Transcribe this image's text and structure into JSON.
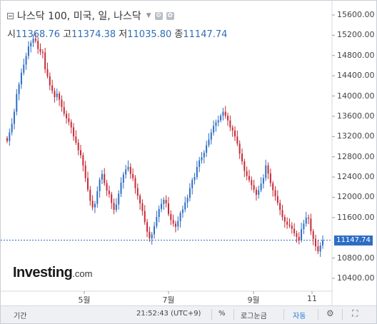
{
  "header": {
    "title": "나스닥 100, 미국, 일, 나스닥",
    "dropdown_icon": "caret-down-icon",
    "icons": [
      "settings-gear-icon",
      "gear-icon"
    ]
  },
  "ohlc": {
    "open_label": "시",
    "open": "11368.76",
    "high_label": "고",
    "high": "11374.38",
    "low_label": "저",
    "low": "11035.80",
    "close_label": "종",
    "close": "11147.74"
  },
  "logo": {
    "main": "Investing",
    "suffix": ".com"
  },
  "y_axis": {
    "labels": [
      "15600.00",
      "15200.00",
      "14800.00",
      "14400.00",
      "14000.00",
      "13600.00",
      "13200.00",
      "12800.00",
      "12400.00",
      "12000.00",
      "11600.00",
      "10800.00",
      "10400.00"
    ],
    "current_price": "11147.74"
  },
  "x_axis": {
    "labels": [
      "5월",
      "7월",
      "9월",
      "11"
    ]
  },
  "bottom_bar": {
    "period": "기간",
    "time": "21:52:43 (UTC+9)",
    "percent": "%",
    "log_scale": "로그눈금",
    "auto": "자동",
    "settings_icon": "gear-icon",
    "fullscreen_icon": "fullscreen-icon"
  },
  "colors": {
    "up": "#2d6ec5",
    "down": "#c62a36",
    "accent": "#2d6ec5"
  },
  "chart_data": {
    "type": "candlestick",
    "x_labels": [
      "5월",
      "7월",
      "9월",
      "11"
    ],
    "y_ticks": [
      15600,
      15200,
      14800,
      14400,
      14000,
      13600,
      13200,
      12800,
      12400,
      12000,
      11600,
      10800,
      10400
    ],
    "ylim": [
      10200,
      15800
    ],
    "last_price": 11147.74,
    "grid": false,
    "closes": [
      13110,
      13280,
      13450,
      13690,
      14040,
      14230,
      14460,
      14620,
      14790,
      14980,
      15050,
      15130,
      15090,
      14930,
      14870,
      14860,
      14530,
      14390,
      14210,
      14100,
      13980,
      14050,
      13930,
      13780,
      13650,
      13560,
      13490,
      13380,
      13200,
      13080,
      12930,
      12830,
      12630,
      12380,
      12150,
      11930,
      11800,
      11870,
      12120,
      12350,
      12460,
      12280,
      12130,
      12060,
      11890,
      11750,
      11860,
      12070,
      12290,
      12450,
      12550,
      12600,
      12460,
      12380,
      12180,
      12030,
      11880,
      11730,
      11510,
      11320,
      11190,
      11270,
      11430,
      11610,
      11770,
      11870,
      11950,
      11880,
      11670,
      11550,
      11480,
      11420,
      11530,
      11690,
      11760,
      11900,
      11990,
      12180,
      12340,
      12400,
      12600,
      12730,
      12790,
      12880,
      13030,
      13140,
      13280,
      13410,
      13480,
      13520,
      13610,
      13690,
      13610,
      13520,
      13380,
      13320,
      13200,
      13060,
      12860,
      12710,
      12520,
      12420,
      12340,
      12240,
      12150,
      12050,
      12140,
      12270,
      12380,
      12630,
      12470,
      12280,
      12140,
      12020,
      11890,
      11750,
      11610,
      11520,
      11460,
      11440,
      11380,
      11290,
      11220,
      11150,
      11370,
      11480,
      11600,
      11580,
      11330,
      11180,
      11030,
      10930,
      11050,
      11147
    ]
  }
}
